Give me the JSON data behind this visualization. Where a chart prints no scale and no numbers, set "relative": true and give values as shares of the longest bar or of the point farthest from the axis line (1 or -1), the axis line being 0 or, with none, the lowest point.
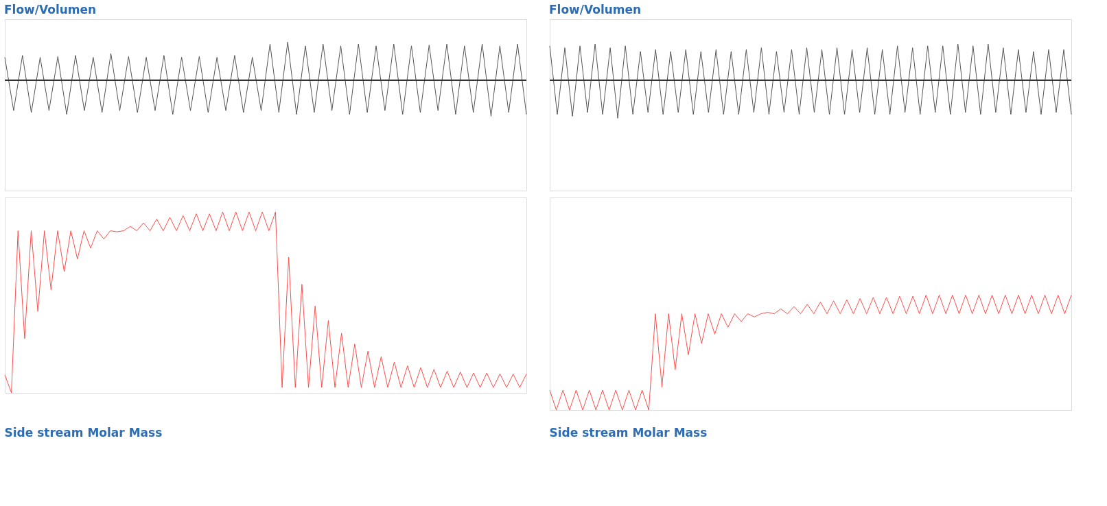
{
  "chart_data": [
    {
      "type": "line",
      "title": "Flow/Volumen",
      "relative": true,
      "color": "#555555",
      "categories": [
        null,
        null,
        null,
        null,
        null,
        null,
        null,
        null,
        null,
        null,
        null,
        null,
        null,
        null,
        null,
        null,
        null,
        null,
        null,
        null,
        null,
        null,
        null,
        null,
        null,
        null,
        null,
        null,
        null,
        null,
        null,
        null,
        null,
        null,
        null,
        null,
        null,
        null,
        null,
        null,
        null,
        null,
        null,
        null,
        null,
        null,
        null,
        null,
        null,
        null,
        null,
        null,
        null,
        null,
        null,
        null,
        null,
        null,
        null,
        null
      ],
      "values": [
        0.6,
        -0.8,
        0.65,
        -0.85,
        0.6,
        -0.8,
        0.62,
        -0.9,
        0.65,
        -0.8,
        0.6,
        -0.85,
        0.7,
        -0.8,
        0.62,
        -0.85,
        0.6,
        -0.8,
        0.65,
        -0.9,
        0.6,
        -0.8,
        0.62,
        -0.85,
        0.6,
        -0.8,
        0.65,
        -0.85,
        0.6,
        -0.8,
        0.95,
        -0.85,
        1,
        -0.9,
        0.9,
        -0.85,
        0.95,
        -0.8,
        0.9,
        -0.9,
        0.95,
        -0.85,
        0.9,
        -0.8,
        0.95,
        -0.9,
        0.9,
        -0.85,
        0.92,
        -0.8,
        0.95,
        -0.9,
        0.9,
        -0.85,
        0.95,
        -0.95,
        0.9,
        -0.85,
        0.95,
        -0.9
      ]
    },
    {
      "type": "line",
      "subtitle": "Side stream Molar Mass",
      "relative": true,
      "color": "#ff4d4d",
      "categories": [
        null,
        null,
        null,
        null,
        null,
        null,
        null,
        null,
        null,
        null,
        null,
        null,
        null,
        null,
        null,
        null,
        null,
        null,
        null,
        null,
        null,
        null,
        null,
        null,
        null,
        null,
        null,
        null,
        null,
        null,
        null,
        null,
        null,
        null,
        null,
        null,
        null,
        null,
        null,
        null,
        null,
        null,
        null,
        null,
        null,
        null,
        null,
        null,
        null,
        null,
        null,
        null,
        null,
        null,
        null,
        null,
        null,
        null,
        null,
        null,
        null,
        null,
        null,
        null,
        null,
        null,
        null,
        null,
        null,
        null,
        null,
        null,
        null,
        null,
        null,
        null,
        null,
        null,
        null,
        null
      ],
      "values": [
        0.1,
        0,
        0.896,
        0.3,
        0.896,
        0.45,
        0.896,
        0.57,
        0.896,
        0.67,
        0.896,
        0.74,
        0.896,
        0.8,
        0.896,
        0.85,
        0.896,
        0.89,
        0.896,
        0.92,
        0.896,
        0.94,
        0.896,
        0.96,
        0.896,
        0.97,
        0.896,
        0.98,
        0.896,
        0.99,
        0.896,
        0.99,
        0.896,
        1,
        0.896,
        1,
        0.896,
        1,
        0.896,
        1,
        0.896,
        1,
        0.03,
        0.75,
        0.03,
        0.6,
        0.03,
        0.48,
        0.03,
        0.4,
        0.03,
        0.33,
        0.03,
        0.27,
        0.03,
        0.23,
        0.03,
        0.2,
        0.03,
        0.17,
        0.03,
        0.15,
        0.03,
        0.14,
        0.03,
        0.13,
        0.03,
        0.12,
        0.03,
        0.115,
        0.03,
        0.11,
        0.03,
        0.11,
        0.03,
        0.105,
        0.03,
        0.104,
        0.03,
        0.104
      ]
    },
    {
      "type": "line",
      "title": "Flow/Volumen",
      "relative": true,
      "color": "#555555",
      "categories": [
        null,
        null,
        null,
        null,
        null,
        null,
        null,
        null,
        null,
        null,
        null,
        null,
        null,
        null,
        null,
        null,
        null,
        null,
        null,
        null,
        null,
        null,
        null,
        null,
        null,
        null,
        null,
        null,
        null,
        null,
        null,
        null,
        null,
        null,
        null,
        null,
        null,
        null,
        null,
        null,
        null,
        null,
        null,
        null,
        null,
        null,
        null,
        null,
        null,
        null,
        null,
        null,
        null,
        null,
        null,
        null,
        null,
        null,
        null,
        null,
        null,
        null,
        null,
        null,
        null,
        null,
        null,
        null,
        null,
        null
      ],
      "values": [
        0.9,
        -0.9,
        0.85,
        -0.95,
        0.9,
        -0.85,
        0.95,
        -0.9,
        0.85,
        -1,
        0.9,
        -0.9,
        0.75,
        -0.85,
        0.8,
        -0.9,
        0.75,
        -0.85,
        0.8,
        -0.9,
        0.75,
        -0.85,
        0.8,
        -0.9,
        0.75,
        -0.9,
        0.8,
        -0.85,
        0.85,
        -0.9,
        0.75,
        -0.85,
        0.8,
        -0.9,
        0.85,
        -0.85,
        0.8,
        -0.9,
        0.85,
        -0.9,
        0.8,
        -0.85,
        0.85,
        -0.9,
        0.8,
        -0.9,
        0.9,
        -0.85,
        0.85,
        -0.9,
        0.9,
        -0.85,
        0.9,
        -0.9,
        0.95,
        -0.85,
        0.9,
        -0.9,
        0.95,
        -0.85,
        0.85,
        -0.9,
        0.8,
        -0.85,
        0.75,
        -0.9,
        0.8,
        -0.85,
        0.8,
        -0.9
      ]
    },
    {
      "type": "line",
      "subtitle": "Side stream Molar Mass",
      "relative": true,
      "color": "#ff4d4d",
      "categories": [
        null,
        null,
        null,
        null,
        null,
        null,
        null,
        null,
        null,
        null,
        null,
        null,
        null,
        null,
        null,
        null,
        null,
        null,
        null,
        null,
        null,
        null,
        null,
        null,
        null,
        null,
        null,
        null,
        null,
        null,
        null,
        null,
        null,
        null,
        null,
        null,
        null,
        null,
        null,
        null,
        null,
        null,
        null,
        null,
        null,
        null,
        null,
        null,
        null,
        null,
        null,
        null,
        null,
        null,
        null,
        null,
        null,
        null,
        null,
        null,
        null,
        null,
        null,
        null,
        null,
        null,
        null,
        null,
        null,
        null,
        null,
        null,
        null,
        null,
        null,
        null,
        null,
        null,
        null,
        null
      ],
      "values": [
        0.173,
        0,
        0.173,
        0,
        0.173,
        0,
        0.173,
        0,
        0.173,
        0,
        0.173,
        0,
        0.173,
        0,
        0.173,
        0,
        0.838,
        0.2,
        0.838,
        0.35,
        0.838,
        0.48,
        0.838,
        0.58,
        0.838,
        0.66,
        0.838,
        0.72,
        0.838,
        0.77,
        0.838,
        0.81,
        0.838,
        0.85,
        0.838,
        0.88,
        0.838,
        0.9,
        0.838,
        0.92,
        0.838,
        0.94,
        0.838,
        0.95,
        0.838,
        0.96,
        0.838,
        0.97,
        0.838,
        0.98,
        0.838,
        0.98,
        0.838,
        0.99,
        0.838,
        0.99,
        0.838,
        1,
        0.838,
        1,
        0.838,
        1,
        0.838,
        1,
        0.838,
        1,
        0.838,
        1,
        0.838,
        1,
        0.838,
        1,
        0.838,
        1,
        0.838,
        1,
        0.838,
        1,
        0.838,
        1
      ]
    }
  ]
}
